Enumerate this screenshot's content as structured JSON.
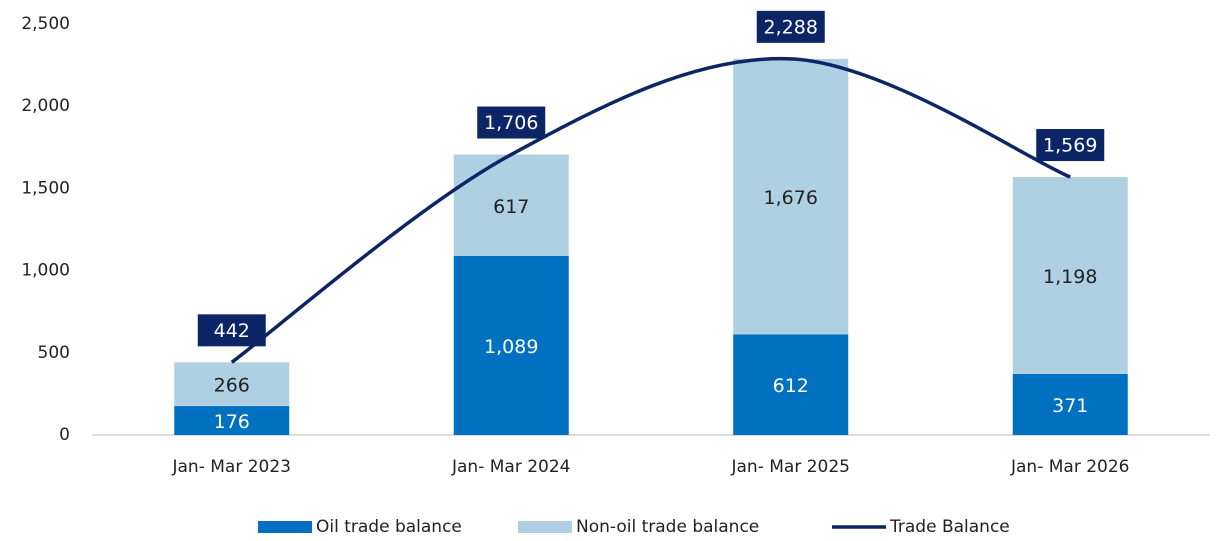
{
  "chart_data": {
    "type": "bar",
    "stacked": true,
    "categories": [
      "Jan- Mar 2023",
      "Jan- Mar 2024",
      "Jan- Mar 2025",
      "Jan- Mar 2026"
    ],
    "series": [
      {
        "name": "Oil trade balance",
        "type": "bar",
        "color": "#0070c0",
        "label_color": "#ffffff",
        "values": [
          176,
          1089,
          612,
          371
        ],
        "value_labels": [
          "176",
          "1,089",
          "612",
          "371"
        ]
      },
      {
        "name": "Non-oil trade balance",
        "type": "bar",
        "color": "#afcfe2",
        "label_color": "#222222",
        "values": [
          266,
          617,
          1676,
          1198
        ],
        "value_labels": [
          "266",
          "617",
          "1,676",
          "1,198"
        ]
      },
      {
        "name": "Trade Balance",
        "type": "line",
        "color": "#0b2566",
        "label_color": "#ffffff",
        "values": [
          442,
          1706,
          2288,
          1569
        ],
        "value_labels": [
          "442",
          "1,706",
          "2,288",
          "1,569"
        ]
      }
    ],
    "ylim": [
      0,
      2500
    ],
    "yticks": [
      0,
      500,
      {
        "value": 1000,
        "label": "1,000"
      },
      {
        "value": 1500,
        "label": "1,500"
      },
      {
        "value": 2000,
        "label": "2,000"
      },
      {
        "value": 2500,
        "label": "2,500"
      }
    ],
    "grid": false,
    "legend": "bottom"
  }
}
